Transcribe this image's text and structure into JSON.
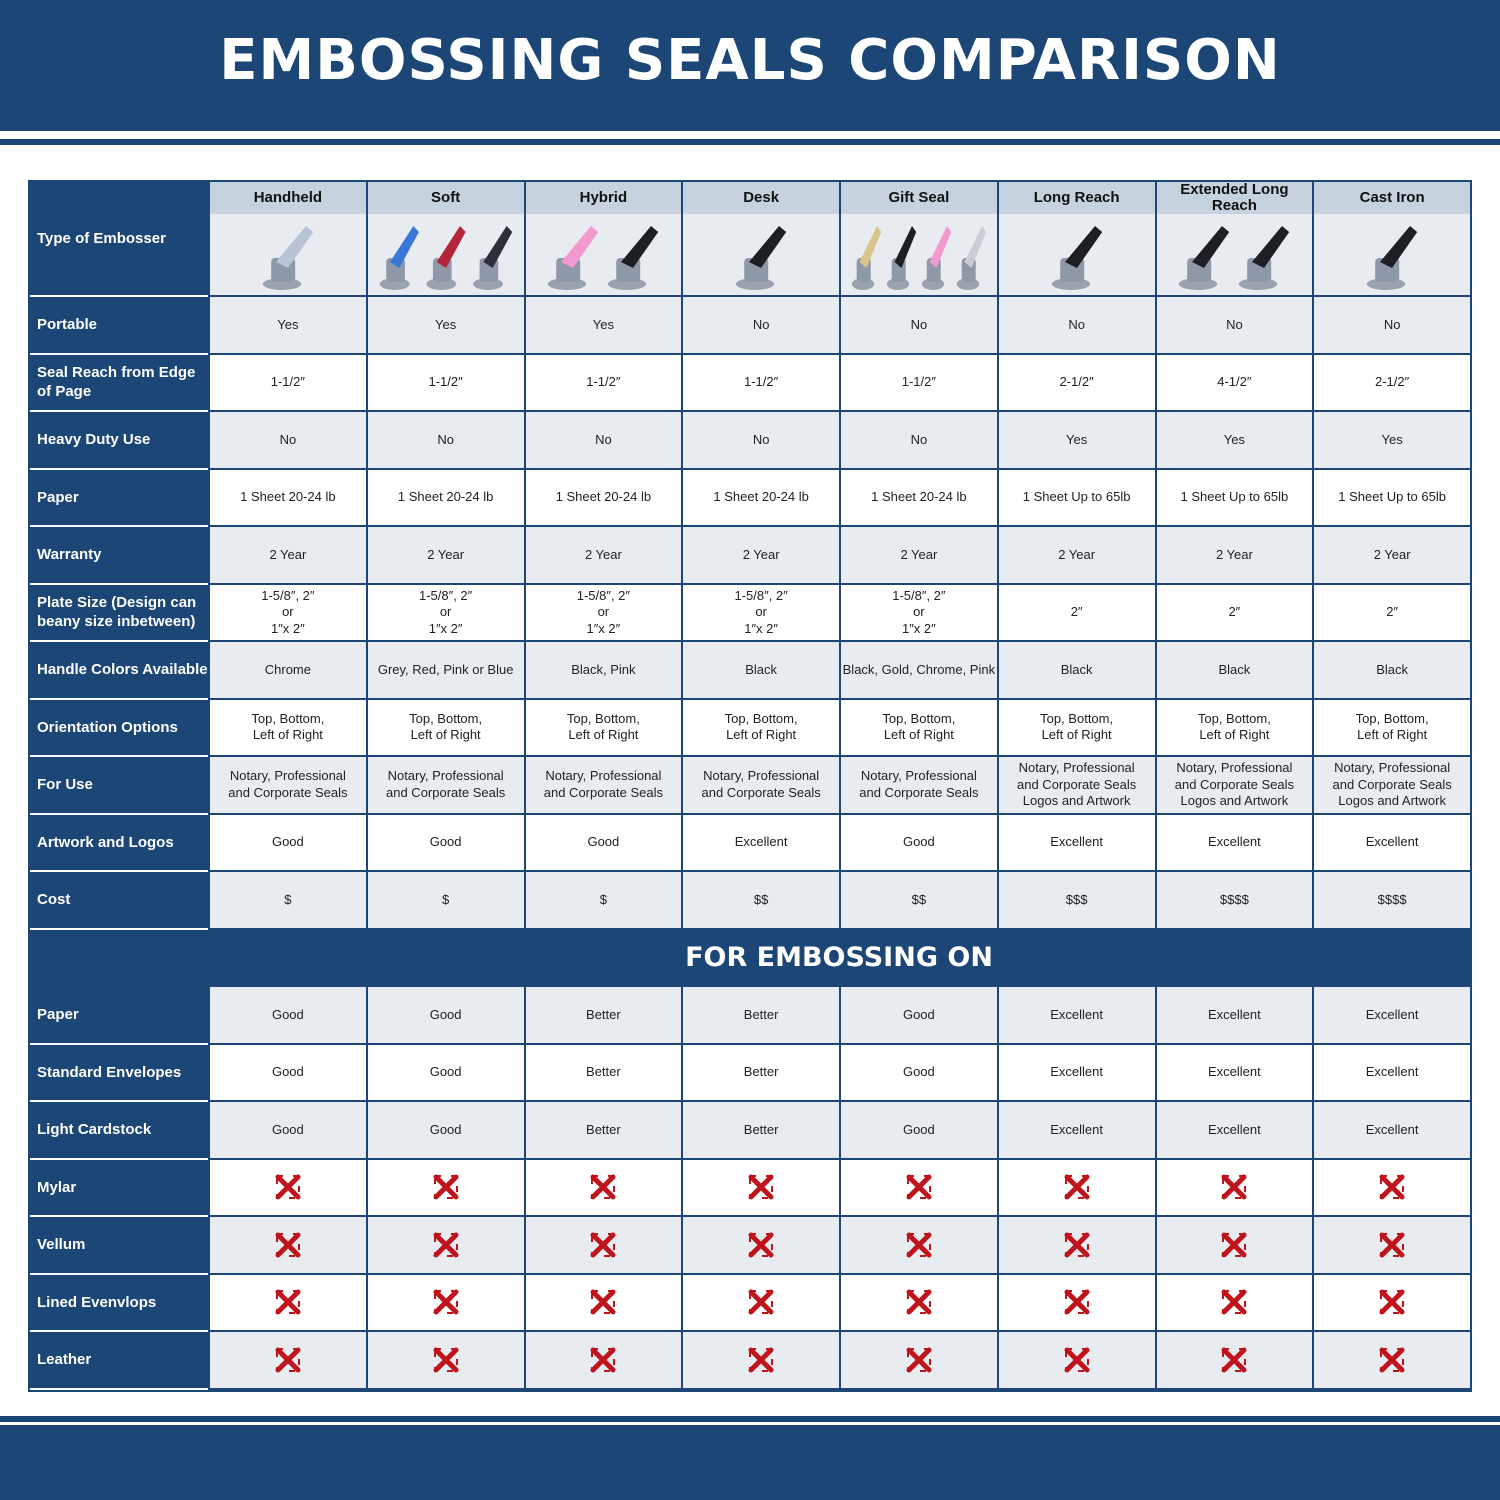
{
  "title": "EMBOSSING SEALS COMPARISON",
  "colors": {
    "navy": "#1b4675",
    "header_gray": "#c6d3df",
    "row_gray": "#e8ecf1",
    "x_red": "#c0141c"
  },
  "header_label": "Type of Embosser",
  "columns": [
    {
      "name": "Handheld",
      "handle_colors": [
        "#b8c4d6"
      ]
    },
    {
      "name": "Soft",
      "handle_colors": [
        "#3a78d8",
        "#b3263a",
        "#2a2f3a"
      ]
    },
    {
      "name": "Hybrid",
      "handle_colors": [
        "#f29ad0",
        "#1d1f24"
      ]
    },
    {
      "name": "Desk",
      "handle_colors": [
        "#1d1f24"
      ]
    },
    {
      "name": "Gift Seal",
      "handle_colors": [
        "#d8c58a",
        "#1d1f24",
        "#f29ad0",
        "#c9ced6"
      ]
    },
    {
      "name": "Long Reach",
      "handle_colors": [
        "#1d1f24"
      ]
    },
    {
      "name": "Extended Long Reach",
      "handle_colors": [
        "#1d1f24",
        "#1d1f24"
      ]
    },
    {
      "name": "Cast Iron",
      "handle_colors": [
        "#1d1f24"
      ]
    }
  ],
  "rows": [
    {
      "label": "Portable",
      "values": [
        "Yes",
        "Yes",
        "Yes",
        "No",
        "No",
        "No",
        "No",
        "No"
      ]
    },
    {
      "label": "Seal Reach from Edge of Page",
      "values": [
        "1-1/2″",
        "1-1/2″",
        "1-1/2″",
        "1-1/2″",
        "1-1/2″",
        "2-1/2″",
        "4-1/2″",
        "2-1/2″"
      ]
    },
    {
      "label": "Heavy Duty Use",
      "values": [
        "No",
        "No",
        "No",
        "No",
        "No",
        "Yes",
        "Yes",
        "Yes"
      ]
    },
    {
      "label": "Paper",
      "values": [
        "1 Sheet 20-24 lb",
        "1 Sheet 20-24 lb",
        "1 Sheet 20-24 lb",
        "1 Sheet 20-24 lb",
        "1 Sheet 20-24 lb",
        "1 Sheet Up to 65lb",
        "1 Sheet Up to 65lb",
        "1 Sheet Up to 65lb"
      ]
    },
    {
      "label": "Warranty",
      "values": [
        "2 Year",
        "2 Year",
        "2 Year",
        "2 Year",
        "2 Year",
        "2 Year",
        "2 Year",
        "2 Year"
      ]
    },
    {
      "label": "Plate Size (Design can beany size inbetween)",
      "values": [
        "1-5/8″, 2″\nor\n1″x 2″",
        "1-5/8″, 2″\nor\n1″x 2″",
        "1-5/8″, 2″\nor\n1″x 2″",
        "1-5/8″, 2″\nor\n1″x 2″",
        "1-5/8″, 2″\nor\n1″x 2″",
        "2″",
        "2″",
        "2″"
      ]
    },
    {
      "label": "Handle Colors Available",
      "values": [
        "Chrome",
        "Grey, Red, Pink or Blue",
        "Black, Pink",
        "Black",
        "Black, Gold, Chrome, Pink",
        "Black",
        "Black",
        "Black"
      ]
    },
    {
      "label": "Orientation Options",
      "values": [
        "Top, Bottom,\nLeft of Right",
        "Top, Bottom,\nLeft of Right",
        "Top, Bottom,\nLeft of Right",
        "Top, Bottom,\nLeft of Right",
        "Top, Bottom,\nLeft of Right",
        "Top, Bottom,\nLeft of Right",
        "Top, Bottom,\nLeft of Right",
        "Top, Bottom,\nLeft of Right"
      ]
    },
    {
      "label": "For Use",
      "values": [
        "Notary, Professional\nand Corporate Seals",
        "Notary, Professional\nand Corporate Seals",
        "Notary, Professional\nand Corporate Seals",
        "Notary, Professional\nand Corporate Seals",
        "Notary, Professional\nand Corporate Seals",
        "Notary, Professional\nand Corporate Seals\nLogos and Artwork",
        "Notary, Professional\nand Corporate Seals\nLogos and Artwork",
        "Notary, Professional\nand Corporate Seals\nLogos and Artwork"
      ]
    },
    {
      "label": "Artwork and Logos",
      "values": [
        "Good",
        "Good",
        "Good",
        "Excellent",
        "Good",
        "Excellent",
        "Excellent",
        "Excellent"
      ]
    },
    {
      "label": "Cost",
      "values": [
        "$",
        "$",
        "$",
        "$$",
        "$$",
        "$$$",
        "$$$$",
        "$$$$"
      ]
    }
  ],
  "section_title": "FOR EMBOSSING ON",
  "materials": [
    {
      "label": "Paper",
      "values": [
        "Good",
        "Good",
        "Better",
        "Better",
        "Good",
        "Excellent",
        "Excellent",
        "Excellent"
      ]
    },
    {
      "label": "Standard Envelopes",
      "values": [
        "Good",
        "Good",
        "Better",
        "Better",
        "Good",
        "Excellent",
        "Excellent",
        "Excellent"
      ]
    },
    {
      "label": "Light Cardstock",
      "values": [
        "Good",
        "Good",
        "Better",
        "Better",
        "Good",
        "Excellent",
        "Excellent",
        "Excellent"
      ]
    },
    {
      "label": "Mylar",
      "values": [
        "x",
        "x",
        "x",
        "x",
        "x",
        "x",
        "x",
        "x"
      ]
    },
    {
      "label": "Vellum",
      "values": [
        "x",
        "x",
        "x",
        "x",
        "x",
        "x",
        "x",
        "x"
      ]
    },
    {
      "label": "Lined Evenvlops",
      "values": [
        "x",
        "x",
        "x",
        "x",
        "x",
        "x",
        "x",
        "x"
      ]
    },
    {
      "label": "Leather",
      "values": [
        "x",
        "x",
        "x",
        "x",
        "x",
        "x",
        "x",
        "x"
      ]
    }
  ]
}
